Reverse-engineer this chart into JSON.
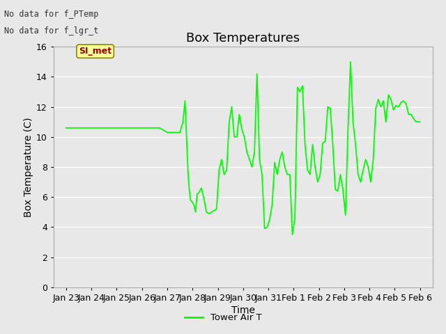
{
  "title": "Box Temperatures",
  "xlabel": "Time",
  "ylabel": "Box Temperature (C)",
  "text_no_data_1": "No data for f_PTemp",
  "text_no_data_2": "No data for f_lgr_t",
  "legend_label": "Tower Air T",
  "legend_line_color": "#00ff00",
  "si_met_label": "SI_met",
  "si_met_bg": "#ffff99",
  "si_met_border": "#888800",
  "si_met_text_color": "#990000",
  "ylim": [
    0,
    16
  ],
  "yticks": [
    0,
    2,
    4,
    6,
    8,
    10,
    12,
    14,
    16
  ],
  "plot_bg_color": "#e8e8e8",
  "fig_bg_color": "#e8e8e8",
  "grid_color": "#ffffff",
  "line_color": "#00ff00",
  "title_fontsize": 13,
  "axis_label_fontsize": 10,
  "tick_fontsize": 9,
  "x_dates": [
    "Jan 23",
    "Jan 24",
    "Jan 25",
    "Jan 26",
    "Jan 27",
    "Jan 28",
    "Jan 29",
    "Jan 30",
    "Jan 31",
    "Feb 1",
    "Feb 2",
    "Feb 3",
    "Feb 4",
    "Feb 5",
    "Feb 6"
  ],
  "x_numeric": [
    0,
    1,
    2,
    3,
    4,
    5,
    6,
    7,
    8,
    9,
    10,
    11,
    12,
    13,
    14
  ],
  "data_x": [
    0.0,
    0.3,
    0.6,
    1.0,
    1.3,
    1.7,
    2.0,
    2.3,
    2.7,
    3.0,
    3.3,
    3.7,
    4.0,
    4.08,
    4.12,
    4.5,
    4.62,
    4.7,
    4.75,
    4.82,
    4.87,
    4.92,
    4.97,
    5.05,
    5.12,
    5.18,
    5.25,
    5.35,
    5.45,
    5.55,
    5.65,
    5.75,
    5.85,
    5.95,
    6.05,
    6.15,
    6.25,
    6.35,
    6.45,
    6.55,
    6.65,
    6.75,
    6.85,
    6.95,
    7.05,
    7.15,
    7.25,
    7.35,
    7.45,
    7.55,
    7.65,
    7.75,
    7.85,
    7.95,
    8.05,
    8.15,
    8.25,
    8.35,
    8.45,
    8.55,
    8.65,
    8.75,
    8.85,
    8.95,
    9.05,
    9.15,
    9.25,
    9.35,
    9.45,
    9.55,
    9.65,
    9.75,
    9.85,
    9.95,
    10.05,
    10.15,
    10.25,
    10.35,
    10.45,
    10.55,
    10.65,
    10.75,
    10.85,
    10.95,
    11.05,
    11.15,
    11.25,
    11.35,
    11.45,
    11.55,
    11.65,
    11.75,
    11.85,
    11.95,
    12.05,
    12.15,
    12.25,
    12.35,
    12.45,
    12.55,
    12.65,
    12.75,
    12.85,
    12.95,
    13.05,
    13.15,
    13.25,
    13.35,
    13.45,
    13.55,
    13.65,
    13.75,
    13.85,
    13.95,
    14.0
  ],
  "data_y": [
    10.6,
    10.6,
    10.6,
    10.6,
    10.6,
    10.6,
    10.6,
    10.6,
    10.6,
    10.6,
    10.6,
    10.6,
    10.3,
    10.3,
    10.3,
    10.3,
    11.0,
    12.4,
    10.5,
    7.7,
    6.5,
    5.8,
    5.7,
    5.5,
    5.0,
    6.2,
    6.3,
    6.6,
    5.9,
    5.0,
    4.9,
    5.0,
    5.1,
    5.2,
    7.8,
    8.5,
    7.5,
    7.8,
    11.0,
    12.0,
    10.0,
    10.0,
    11.5,
    10.5,
    10.0,
    9.0,
    8.5,
    8.0,
    9.0,
    14.2,
    8.5,
    7.5,
    3.9,
    4.0,
    4.5,
    5.5,
    8.3,
    7.5,
    8.5,
    9.0,
    8.0,
    7.5,
    7.5,
    3.5,
    4.6,
    13.3,
    13.0,
    13.4,
    9.5,
    7.8,
    7.5,
    9.5,
    8.0,
    7.0,
    7.5,
    9.6,
    9.7,
    12.0,
    11.9,
    9.5,
    6.5,
    6.4,
    7.5,
    6.5,
    4.8,
    10.5,
    15.0,
    11.0,
    9.5,
    7.5,
    7.0,
    7.8,
    8.5,
    8.0,
    7.0,
    8.5,
    11.9,
    12.5,
    12.0,
    12.4,
    11.0,
    12.8,
    12.5,
    11.8,
    12.1,
    12.0,
    12.3,
    12.4,
    12.2,
    11.5,
    11.5,
    11.2,
    11.0,
    11.0,
    11.0
  ]
}
